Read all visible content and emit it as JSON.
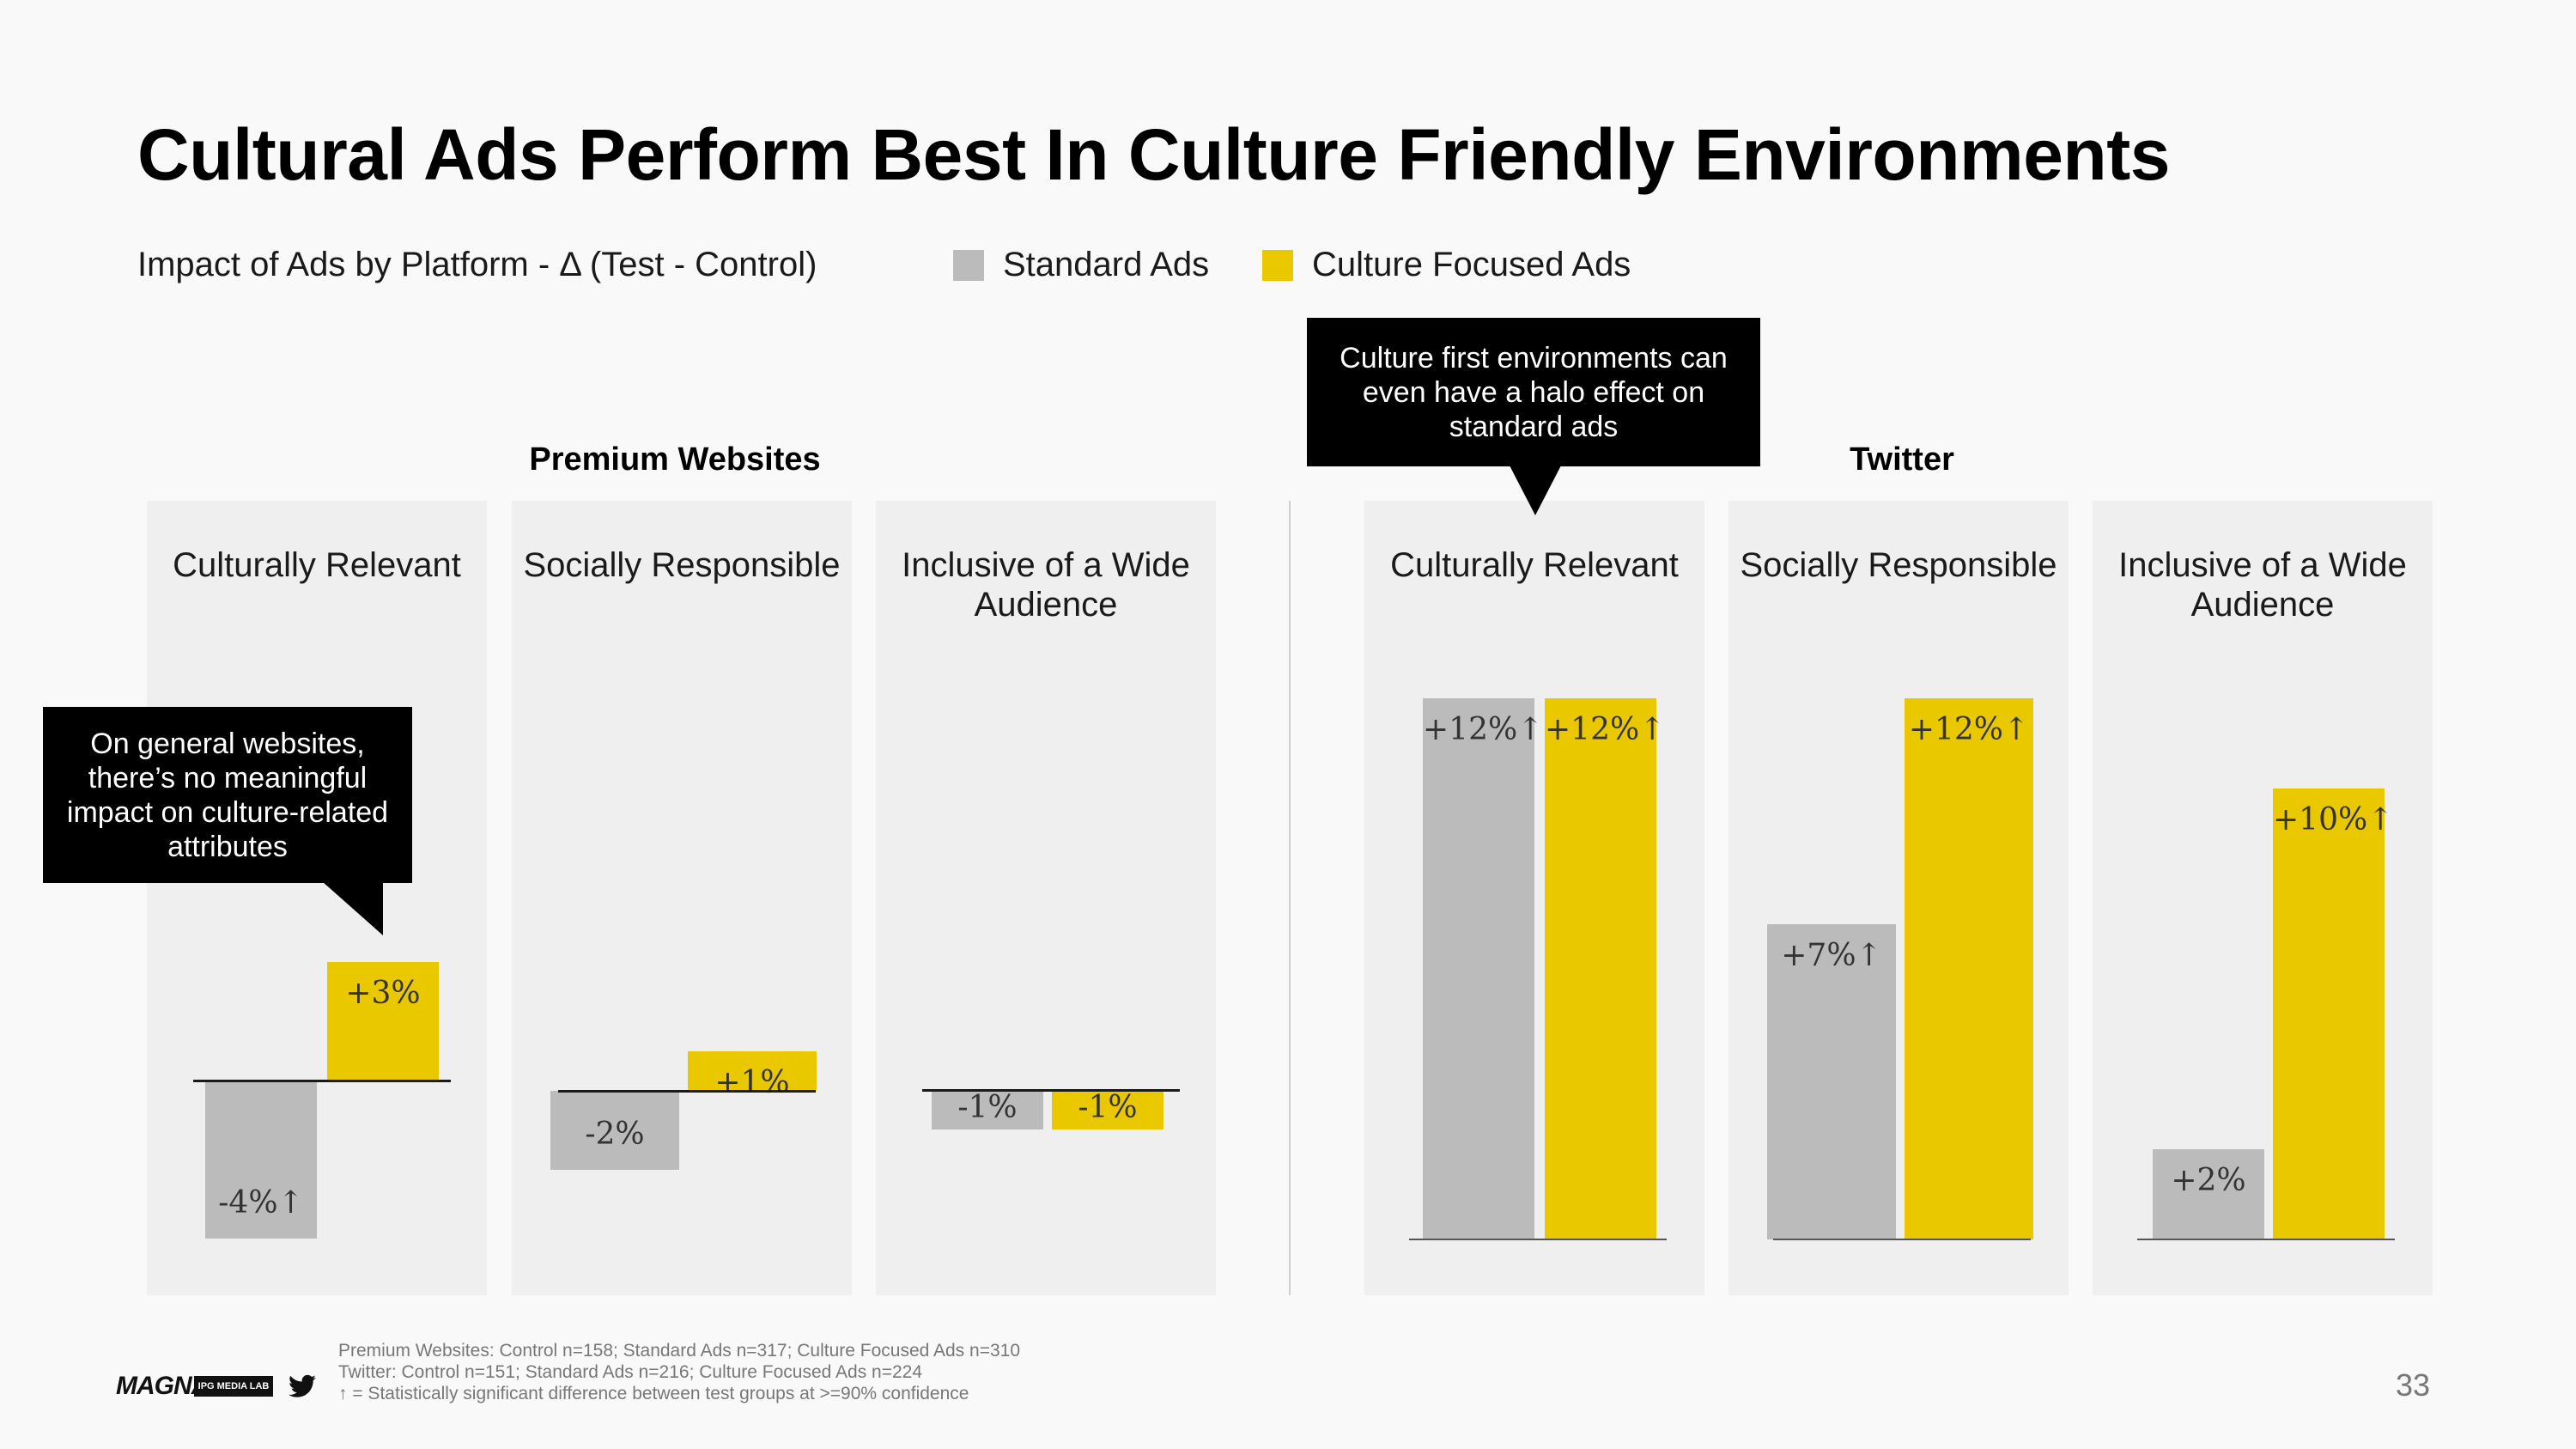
{
  "title": "Cultural Ads Perform Best In Culture Friendly Environments",
  "subtitle": "Impact of Ads by Platform - Δ (Test - Control)",
  "legend": [
    {
      "label": "Standard Ads",
      "color": "#bbbbbb"
    },
    {
      "label": "Culture Focused Ads",
      "color": "#eac800"
    }
  ],
  "colors": {
    "standard": "#bbbbbb",
    "culture": "#eac800",
    "panel": "#efefef",
    "callout": "#000000"
  },
  "groups": [
    {
      "title": "Premium Websites"
    },
    {
      "title": "Twitter"
    }
  ],
  "callouts": [
    {
      "text": "On general websites, there’s no meaningful impact on culture-related attributes"
    },
    {
      "text": "Culture first environments can even have a halo effect on standard ads"
    }
  ],
  "chart_data": [
    {
      "type": "bar",
      "title": "Premium Websites",
      "categories": [
        "Culturally Relevant",
        "Socially Responsible",
        "Inclusive of a Wide Audience"
      ],
      "series": [
        {
          "name": "Standard Ads",
          "values": [
            -4,
            -2,
            -1
          ],
          "labels": [
            "-4%↑",
            "-2%",
            "-1%"
          ]
        },
        {
          "name": "Culture Focused Ads",
          "values": [
            3,
            1,
            -1
          ],
          "labels": [
            "+3%",
            "+1%",
            "-1%"
          ]
        }
      ]
    },
    {
      "type": "bar",
      "title": "Twitter",
      "categories": [
        "Culturally Relevant",
        "Socially Responsible",
        "Inclusive of a Wide Audience"
      ],
      "series": [
        {
          "name": "Standard Ads",
          "values": [
            12,
            7,
            2
          ],
          "labels": [
            "+12%↑",
            "+7%↑",
            "+2%"
          ]
        },
        {
          "name": "Culture Focused Ads",
          "values": [
            12,
            12,
            10
          ],
          "labels": [
            "+12%↑",
            "+12%↑",
            "+10%↑"
          ]
        }
      ]
    }
  ],
  "footnotes": [
    "Premium Websites: Control n=158; Standard Ads n=317; Culture Focused Ads n=310",
    "Twitter: Control n=151; Standard Ads n=216; Culture Focused Ads n=224",
    "↑ = Statistically significant difference between test groups at >=90% confidence"
  ],
  "logos": {
    "magna": "MAGNA",
    "ipg": "IPG MEDIA LAB",
    "twitter_icon": "twitter-bird-icon"
  },
  "page_number": "33"
}
